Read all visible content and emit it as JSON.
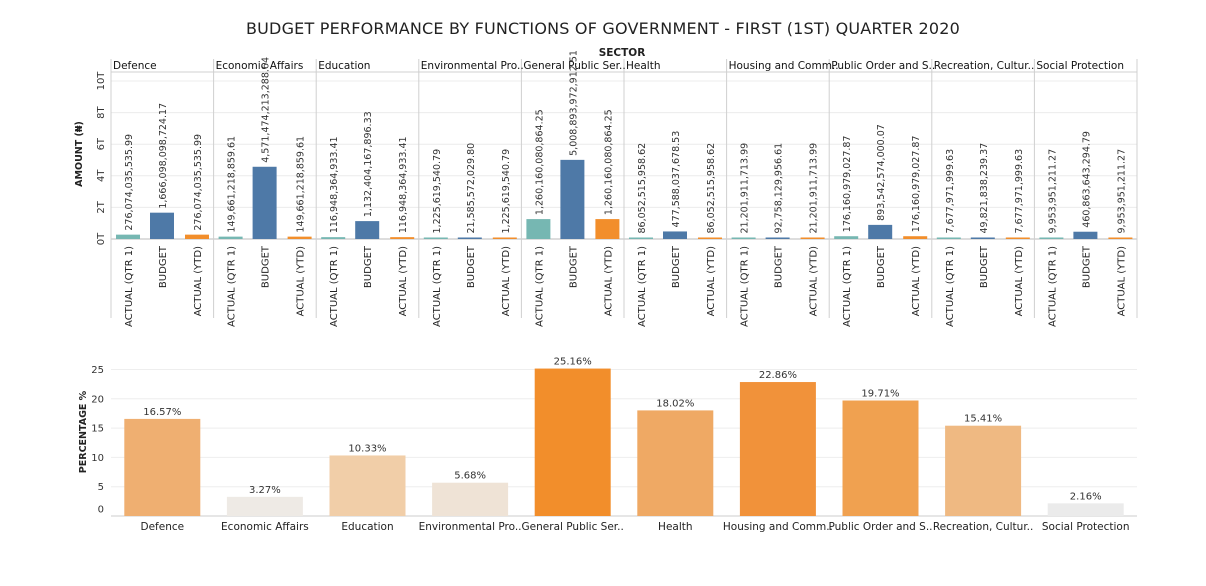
{
  "title": "BUDGET PERFORMANCE BY FUNCTIONS OF GOVERNMENT - FIRST (1ST) QUARTER 2020",
  "top_chart": {
    "sector_header": "SECTOR",
    "ylabel": "AMOUNT (₦)",
    "y_ticks": [
      "0T",
      "2T",
      "4T",
      "6T",
      "8T",
      "10T"
    ],
    "colors": {
      "actual_qtr1": "#76b7b2",
      "budget": "#4e79a7",
      "actual_ytd": "#f28e2b"
    }
  },
  "bottom_chart": {
    "ylabel": "PERCENTAGE %",
    "y_ticks": [
      "0",
      "5",
      "10",
      "15",
      "20",
      "25"
    ]
  },
  "chart_data": [
    {
      "type": "bar",
      "title": "BUDGET PERFORMANCE BY FUNCTIONS OF GOVERNMENT - FIRST (1ST) QUARTER 2020",
      "ylabel": "AMOUNT (₦)",
      "ylim": [
        0,
        10000000000000
      ],
      "grid": true,
      "facet_label": "SECTOR",
      "measures": [
        "ACTUAL (QTR 1)",
        "BUDGET",
        "ACTUAL (YTD)"
      ],
      "panels": [
        {
          "sector": "Defence",
          "values": [
            276074035535.99,
            1666098098724.17,
            276074035535.99
          ],
          "labels": [
            "276,074,035,535.99",
            "1,666,098,098,724.17",
            "276,074,035,535.99"
          ]
        },
        {
          "sector": "Economic Affairs",
          "values": [
            149661218859.61,
            4571474213288.64,
            149661218859.61
          ],
          "labels": [
            "149,661,218,859.61",
            "4,571,474,213,288.64",
            "149,661,218,859.61"
          ]
        },
        {
          "sector": "Education",
          "values": [
            116948364933.41,
            1132404167896.33,
            116948364933.41
          ],
          "labels": [
            "116,948,364,933.41",
            "1,132,404,167,896.33",
            "116,948,364,933.41"
          ]
        },
        {
          "sector": "Environmental Pro..",
          "values": [
            1225619540.79,
            21585572029.8,
            1225619540.79
          ],
          "labels": [
            "1,225,619,540.79",
            "21,585,572,029.80",
            "1,225,619,540.79"
          ]
        },
        {
          "sector": "General Public Ser..",
          "values": [
            1260160080864.25,
            5008893972912.51,
            1260160080864.25
          ],
          "labels": [
            "1,260,160,080,864.25",
            "5,008,893,972,912.51",
            "1,260,160,080,864.25"
          ]
        },
        {
          "sector": "Health",
          "values": [
            86052515958.62,
            477588037678.53,
            86052515958.62
          ],
          "labels": [
            "86,052,515,958.62",
            "477,588,037,678.53",
            "86,052,515,958.62"
          ]
        },
        {
          "sector": "Housing and Comm..",
          "values": [
            21201911713.99,
            92758129956.61,
            21201911713.99
          ],
          "labels": [
            "21,201,911,713.99",
            "92,758,129,956.61",
            "21,201,911,713.99"
          ]
        },
        {
          "sector": "Public Order and S..",
          "values": [
            176160979027.87,
            893542574000.07,
            176160979027.87
          ],
          "labels": [
            "176,160,979,027.87",
            "893,542,574,000.07",
            "176,160,979,027.87"
          ]
        },
        {
          "sector": "Recreation, Cultur..",
          "values": [
            7677971999.63,
            49821838239.37,
            7677971999.63
          ],
          "labels": [
            "7,677,971,999.63",
            "49,821,838,239.37",
            "7,677,971,999.63"
          ]
        },
        {
          "sector": "Social Protection",
          "values": [
            9953951211.27,
            460863643294.79,
            9953951211.27
          ],
          "labels": [
            "9,953,951,211.27",
            "460,863,643,294.79",
            "9,953,951,211.27"
          ]
        }
      ]
    },
    {
      "type": "bar",
      "ylabel": "PERCENTAGE %",
      "ylim": [
        0,
        25
      ],
      "grid": true,
      "categories": [
        "Defence",
        "Economic Affairs",
        "Education",
        "Environmental Pro..",
        "General Public Ser..",
        "Health",
        "Housing and Comm..",
        "Public Order and S..",
        "Recreation, Cultur..",
        "Social Protection"
      ],
      "values": [
        16.57,
        3.27,
        10.33,
        5.68,
        25.16,
        18.02,
        22.86,
        19.71,
        15.41,
        2.16
      ],
      "labels": [
        "16.57%",
        "3.27%",
        "10.33%",
        "5.68%",
        "25.16%",
        "18.02%",
        "22.86%",
        "19.71%",
        "15.41%",
        "2.16%"
      ],
      "colors": [
        "#efaf71",
        "#eeeae5",
        "#f1cea8",
        "#efe3d6",
        "#f28e2b",
        "#efa964",
        "#f1923a",
        "#f0a150",
        "#efb982",
        "#ebebeb"
      ]
    }
  ]
}
